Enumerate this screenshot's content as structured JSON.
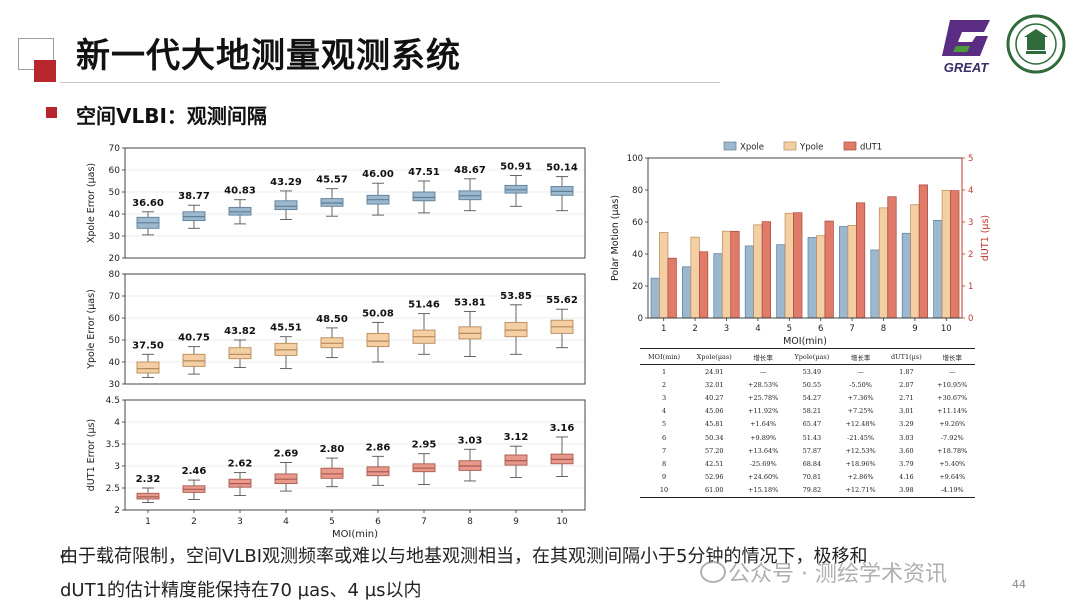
{
  "title": "新一代大地测量观测系统",
  "section": "空间VLBI：观测间隔",
  "logo_text": "GREAT",
  "bottom_line1": "由于载荷限制，空间VLBI观测频率或难以与地基观测相当，在其观测间隔小于5分钟的情况下，极移和",
  "bottom_line2": "dUT1的估计精度能保持在70 µas、4 µs以内",
  "watermark": "公众号 · 测绘学术资讯",
  "page_number": "44",
  "colors": {
    "xpole": "#9bb8cf",
    "ypole": "#f4cfa3",
    "dut1": "#e07b6a",
    "accent": "#b8262d"
  },
  "chart_data": [
    {
      "type": "box",
      "ylabel": "Xpole Error (µas)",
      "ylim": [
        20,
        70
      ],
      "yticks": [
        20,
        30,
        40,
        50,
        60,
        70
      ],
      "x": [
        1,
        2,
        3,
        4,
        5,
        6,
        7,
        8,
        9,
        10
      ],
      "labels": [
        "36.60",
        "38.77",
        "40.83",
        "43.29",
        "45.57",
        "46.00",
        "47.51",
        "48.67",
        "50.91",
        "50.14"
      ],
      "medians": [
        36.0,
        38.8,
        41.0,
        43.5,
        45.0,
        46.5,
        47.5,
        48.3,
        51.0,
        50.3
      ],
      "q1": [
        33.5,
        37.0,
        39.5,
        42.0,
        43.5,
        44.5,
        46.0,
        46.5,
        49.5,
        48.5
      ],
      "q3": [
        38.5,
        41.0,
        43.0,
        46.0,
        47.0,
        48.5,
        50.0,
        50.5,
        53.0,
        52.5
      ],
      "wlo": [
        30.5,
        33.5,
        35.5,
        37.5,
        39.0,
        39.5,
        40.5,
        41.5,
        43.5,
        41.5
      ],
      "whi": [
        41.0,
        44.0,
        46.5,
        50.5,
        51.5,
        54.0,
        55.0,
        56.0,
        57.5,
        57.0
      ],
      "color": "#9bb8cf",
      "edge": "#5e7f98"
    },
    {
      "type": "box",
      "ylabel": "Ypole Error (µas)",
      "ylim": [
        30,
        80
      ],
      "yticks": [
        30,
        40,
        50,
        60,
        70,
        80
      ],
      "x": [
        1,
        2,
        3,
        4,
        5,
        6,
        7,
        8,
        9,
        10
      ],
      "labels": [
        "37.50",
        "40.75",
        "43.82",
        "45.51",
        "48.50",
        "50.08",
        "51.46",
        "53.81",
        "53.85",
        "55.62"
      ],
      "medians": [
        37.0,
        40.5,
        43.5,
        45.5,
        48.5,
        49.5,
        51.5,
        53.0,
        54.5,
        56.0
      ],
      "q1": [
        35.0,
        38.0,
        41.5,
        43.0,
        46.5,
        47.0,
        48.5,
        50.5,
        51.5,
        53.0
      ],
      "q3": [
        40.0,
        43.5,
        46.5,
        48.5,
        51.0,
        53.0,
        54.5,
        56.0,
        58.0,
        59.0
      ],
      "wlo": [
        33.0,
        34.5,
        37.5,
        37.0,
        42.0,
        40.0,
        43.5,
        42.5,
        43.5,
        46.5
      ],
      "whi": [
        43.5,
        47.0,
        50.0,
        51.5,
        55.5,
        58.0,
        62.0,
        63.0,
        66.0,
        64.0
      ],
      "color": "#f4cfa3",
      "edge": "#b8895a"
    },
    {
      "type": "box",
      "ylabel": "dUT1 Error (µs)",
      "xlabel": "MOI(min)",
      "ylim": [
        2.0,
        4.5
      ],
      "yticks": [
        2.0,
        2.5,
        3.0,
        3.5,
        4.0,
        4.5
      ],
      "x": [
        1,
        2,
        3,
        4,
        5,
        6,
        7,
        8,
        9,
        10
      ],
      "labels": [
        "2.32",
        "2.46",
        "2.62",
        "2.69",
        "2.80",
        "2.86",
        "2.95",
        "3.03",
        "3.12",
        "3.16"
      ],
      "medians": [
        2.3,
        2.47,
        2.6,
        2.7,
        2.82,
        2.87,
        2.95,
        3.0,
        3.12,
        3.15
      ],
      "q1": [
        2.25,
        2.4,
        2.52,
        2.6,
        2.72,
        2.78,
        2.87,
        2.9,
        3.02,
        3.05
      ],
      "q3": [
        2.38,
        2.55,
        2.7,
        2.82,
        2.95,
        2.98,
        3.05,
        3.12,
        3.25,
        3.27
      ],
      "wlo": [
        2.17,
        2.24,
        2.33,
        2.43,
        2.53,
        2.56,
        2.58,
        2.66,
        2.74,
        2.76
      ],
      "whi": [
        2.5,
        2.68,
        2.85,
        3.08,
        3.18,
        3.22,
        3.28,
        3.38,
        3.45,
        3.66
      ],
      "color": "#e8998b",
      "edge": "#a85a4e"
    },
    {
      "type": "bar",
      "x": [
        1,
        2,
        3,
        4,
        5,
        6,
        7,
        8,
        9,
        10
      ],
      "xlabel": "MOI(min)",
      "ylabel": "Polar Motion (µas)",
      "ylabel_right": "dUT1 (µs)",
      "ylim": [
        0,
        100
      ],
      "ylim_right": [
        0,
        5
      ],
      "yticks": [
        0,
        20,
        40,
        60,
        80,
        100
      ],
      "yticks_right": [
        0,
        1,
        2,
        3,
        4,
        5
      ],
      "legend_position": "top",
      "series": [
        {
          "name": "Xpole",
          "axis": "left",
          "values": [
            24.91,
            32.01,
            40.27,
            45.06,
            45.81,
            50.34,
            57.2,
            42.51,
            52.96,
            61.0
          ]
        },
        {
          "name": "Ypole",
          "axis": "left",
          "values": [
            53.49,
            50.55,
            54.27,
            58.21,
            65.47,
            51.43,
            57.87,
            68.84,
            70.81,
            79.82
          ]
        },
        {
          "name": "dUT1",
          "axis": "right",
          "values": [
            1.87,
            2.07,
            2.71,
            3.01,
            3.29,
            3.03,
            3.6,
            3.79,
            4.16,
            3.98
          ]
        }
      ]
    }
  ],
  "table": {
    "headers": [
      "MOI(min)",
      "Xpole(µas)",
      "增长率",
      "Ypole(µas)",
      "增长率",
      "dUT1(µs)",
      "增长率"
    ],
    "rows": [
      [
        "1",
        "24.91",
        "—",
        "53.49",
        "—",
        "1.87",
        "—"
      ],
      [
        "2",
        "32.01",
        "+28.53%",
        "50.55",
        "-5.50%",
        "2.07",
        "+10.95%"
      ],
      [
        "3",
        "40.27",
        "+25.78%",
        "54.27",
        "+7.36%",
        "2.71",
        "+30.67%"
      ],
      [
        "4",
        "45.06",
        "+11.92%",
        "58.21",
        "+7.25%",
        "3.01",
        "+11.14%"
      ],
      [
        "5",
        "45.81",
        "+1.64%",
        "65.47",
        "+12.48%",
        "3.29",
        "+9.26%"
      ],
      [
        "6",
        "50.34",
        "+9.89%",
        "51.43",
        "-21.45%",
        "3.03",
        "-7.92%"
      ],
      [
        "7",
        "57.20",
        "+13.64%",
        "57.87",
        "+12.53%",
        "3.60",
        "+18.78%"
      ],
      [
        "8",
        "42.51",
        "-25.69%",
        "68.84",
        "+18.96%",
        "3.79",
        "+5.40%"
      ],
      [
        "9",
        "52.96",
        "+24.60%",
        "70.81",
        "+2.86%",
        "4.16",
        "+9.64%"
      ],
      [
        "10",
        "61.00",
        "+15.18%",
        "79.82",
        "+12.71%",
        "3.98",
        "-4.19%"
      ]
    ]
  }
}
